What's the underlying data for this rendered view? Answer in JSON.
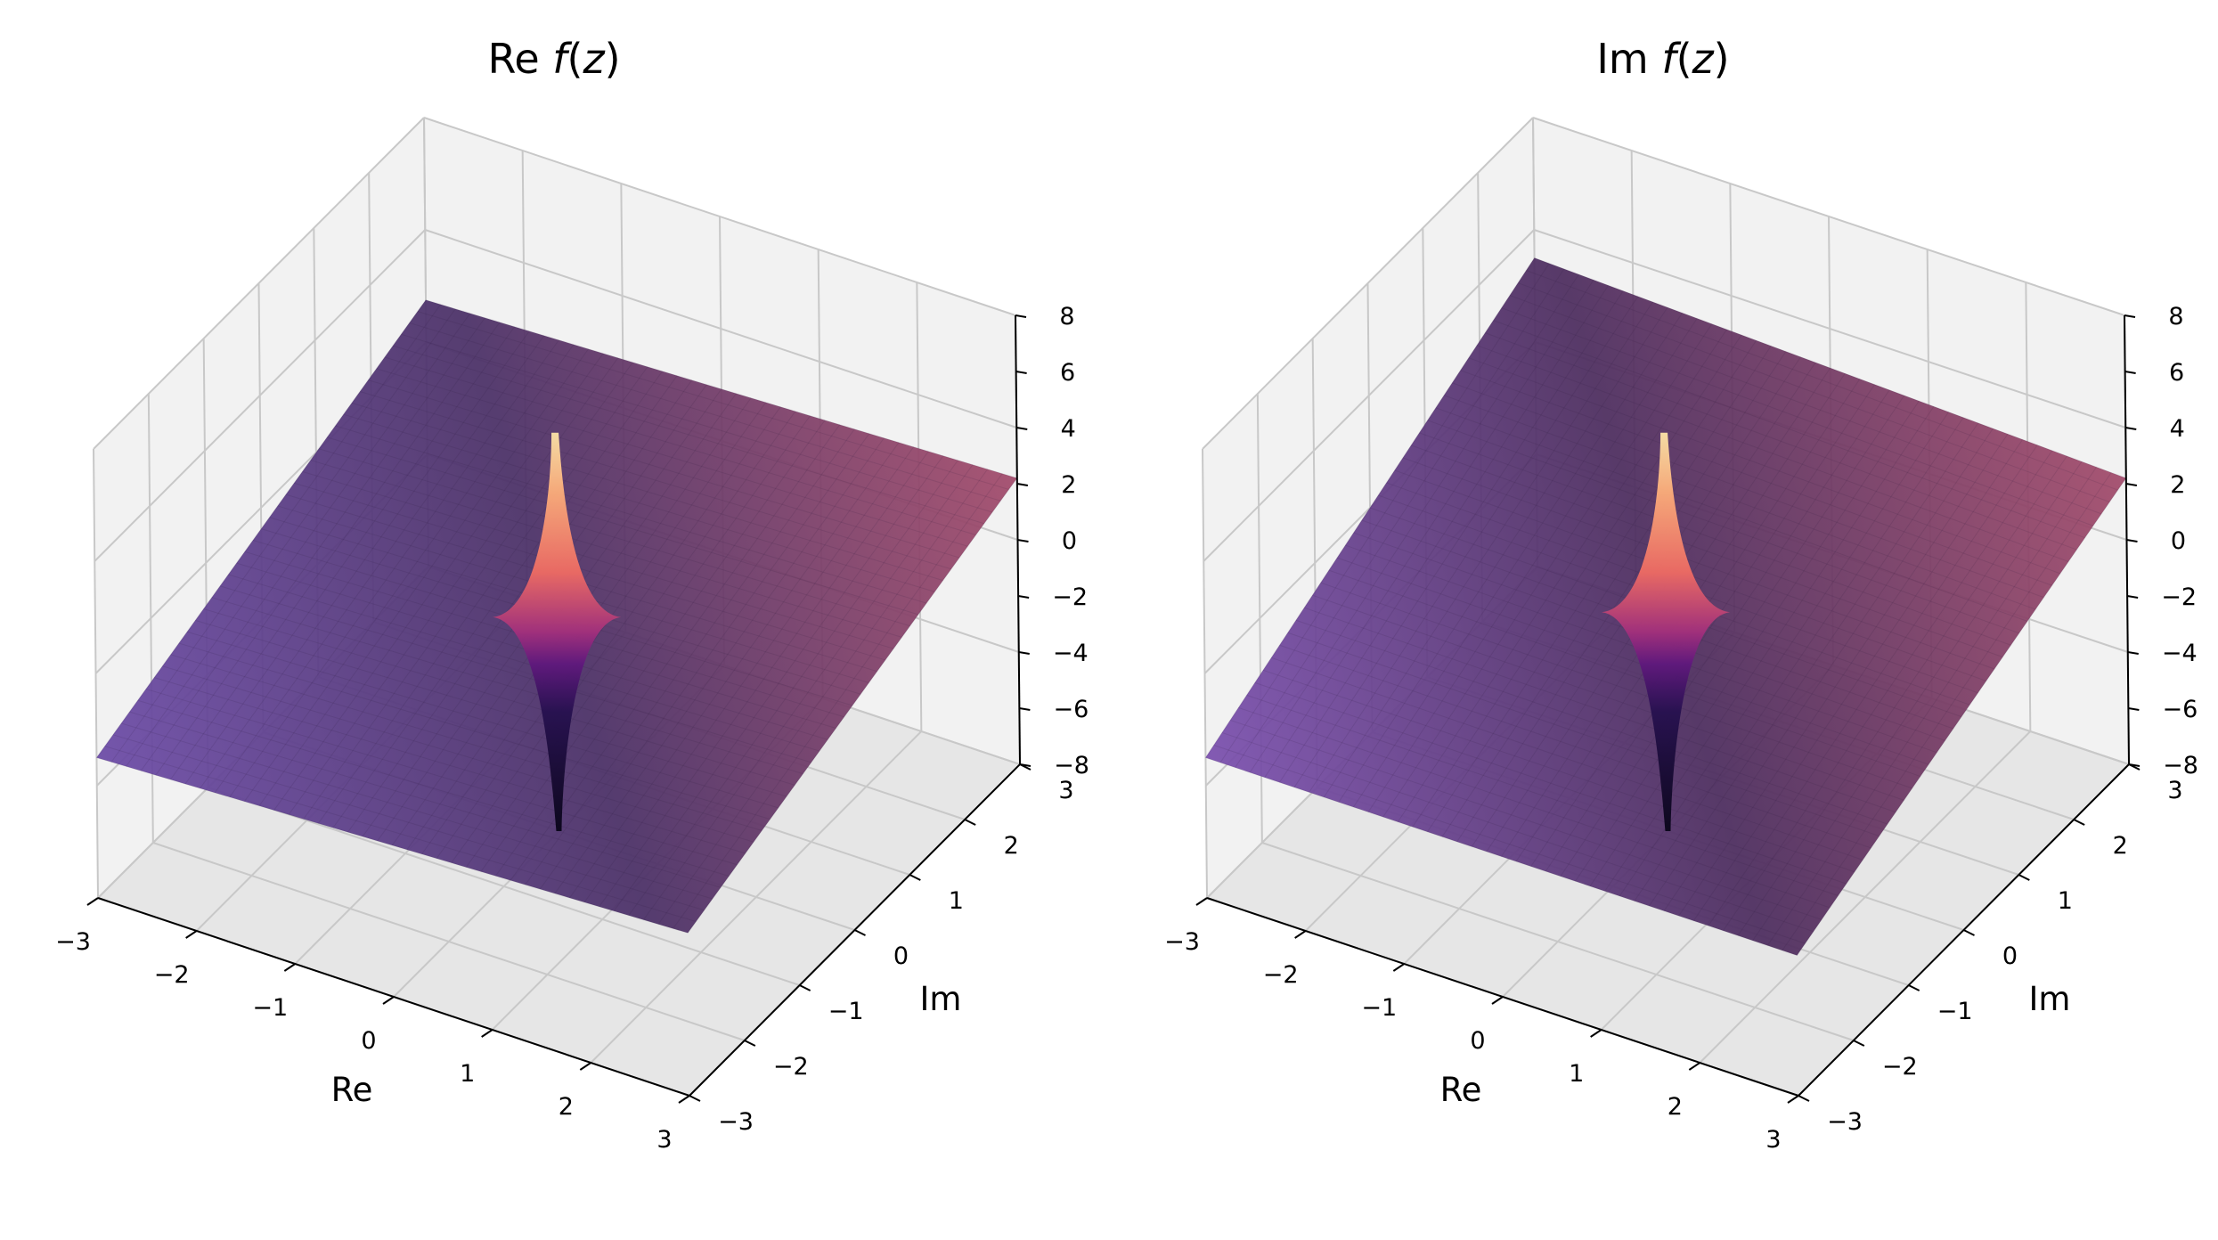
{
  "chart_data": [
    {
      "type": "surface3d",
      "title": {
        "pre": "Re ",
        "italic": "f",
        "mid": "(",
        "italic2": "z",
        "post": ")"
      },
      "xlabel": "Re",
      "ylabel": "Im",
      "zlabel": "",
      "xlim": [
        -3,
        3
      ],
      "ylim": [
        -3,
        3
      ],
      "zlim": [
        -8,
        8
      ],
      "xticks": [
        "−3",
        "−2",
        "−1",
        "0",
        "1",
        "2",
        "3"
      ],
      "yticks": [
        "−3",
        "−2",
        "−1",
        "0",
        "1",
        "2",
        "3"
      ],
      "zticks": [
        "−8",
        "−6",
        "−4",
        "−2",
        "0",
        "2",
        "4",
        "6",
        "8"
      ],
      "surface": {
        "component": "real",
        "corners_z": {
          "x-3_y-3": -3.0,
          "x3_y-3": -2.2,
          "x3_y3": 2.2,
          "x-3_y3": 1.5
        },
        "spike": {
          "x": 0,
          "y": 0,
          "max": 6.2,
          "min": -8.0
        }
      },
      "colormap": "magma",
      "grid": true
    },
    {
      "type": "surface3d",
      "title": {
        "pre": "Im ",
        "italic": "f",
        "mid": "(",
        "italic2": "z",
        "post": ")"
      },
      "xlabel": "Re",
      "ylabel": "Im",
      "zlabel": "",
      "xlim": [
        -3,
        3
      ],
      "ylim": [
        -3,
        3
      ],
      "zlim": [
        -8,
        8
      ],
      "xticks": [
        "−3",
        "−2",
        "−1",
        "0",
        "1",
        "2",
        "3"
      ],
      "yticks": [
        "−3",
        "−2",
        "−1",
        "0",
        "1",
        "2",
        "3"
      ],
      "zticks": [
        "−8",
        "−6",
        "−4",
        "−2",
        "0",
        "2",
        "4",
        "6",
        "8"
      ],
      "surface": {
        "component": "imag",
        "corners_z": {
          "x-3_y-3": -3.0,
          "x3_y-3": -3.0,
          "x3_y3": 2.2,
          "x-3_y3": 3.0
        },
        "spike": {
          "x": 0,
          "y": 0,
          "max": 6.2,
          "min": -8.0
        }
      },
      "colormap": "magma",
      "grid": true
    }
  ],
  "colors": {
    "pane_light": "#f2f2f2",
    "pane_dark": "#e6e6e6",
    "grid": "#c8c8c8",
    "surface_low": "#6b4aa6",
    "surface_high": "#a24a6a"
  }
}
